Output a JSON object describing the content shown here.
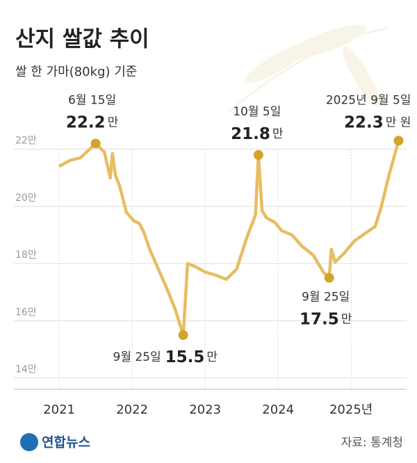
{
  "chart_data": {
    "type": "line",
    "title": "산지 쌀값 추이",
    "subtitle": "쌀 한 가마(80kg) 기준",
    "source": "자료: 통계청",
    "logo": "연합뉴스",
    "xlim": [
      2020.38,
      2025.76
    ],
    "xticks": [
      2021,
      2022,
      2023,
      2024,
      {
        "value": 2025,
        "label": "2025년"
      }
    ],
    "ylim": [
      13.6,
      22.6
    ],
    "yticks": [
      {
        "value": 14,
        "label": "14만"
      },
      {
        "value": 16,
        "label": "16만"
      },
      {
        "value": 18,
        "label": "18만"
      },
      {
        "value": 20,
        "label": "20만"
      },
      {
        "value": 22,
        "label": "22만"
      }
    ],
    "grid": true,
    "series": [
      {
        "color": "#e6bd62",
        "x": [
          2021.0,
          2021.14,
          2021.29,
          2021.5,
          2021.62,
          2021.7,
          2021.73,
          2021.77,
          2021.83,
          2021.92,
          2022.02,
          2022.1,
          2022.16,
          2022.24,
          2022.36,
          2022.48,
          2022.59,
          2022.7,
          2022.76,
          2022.86,
          2023.0,
          2023.14,
          2023.29,
          2023.43,
          2023.57,
          2023.69,
          2023.73,
          2023.78,
          2023.84,
          2023.95,
          2024.05,
          2024.19,
          2024.33,
          2024.48,
          2024.62,
          2024.7,
          2024.73,
          2024.78,
          2024.9,
          2025.05,
          2025.19,
          2025.33,
          2025.41,
          2025.52,
          2025.65
        ],
        "values": [
          21.4,
          21.6,
          21.7,
          22.2,
          21.9,
          21.0,
          21.85,
          21.1,
          20.7,
          19.8,
          19.5,
          19.4,
          19.1,
          18.5,
          17.8,
          17.1,
          16.4,
          15.5,
          18.0,
          17.9,
          17.7,
          17.6,
          17.45,
          17.8,
          18.9,
          19.7,
          21.8,
          19.85,
          19.6,
          19.45,
          19.15,
          19.0,
          18.6,
          18.3,
          17.7,
          17.5,
          18.5,
          18.05,
          18.35,
          18.8,
          19.05,
          19.3,
          19.95,
          21.1,
          22.3
        ]
      }
    ],
    "annotations": [
      {
        "date": "6월 15일",
        "value": 22.2,
        "unit": "만"
      },
      {
        "date": "9월 25일",
        "value": 15.5,
        "unit": "만"
      },
      {
        "date": "10월 5일",
        "value": 21.8,
        "unit": "만"
      },
      {
        "date": "9월 25일",
        "value": 17.5,
        "unit": "만"
      },
      {
        "date": "2025년 9월 5일",
        "value": 22.3,
        "unit": "만 원"
      }
    ]
  }
}
